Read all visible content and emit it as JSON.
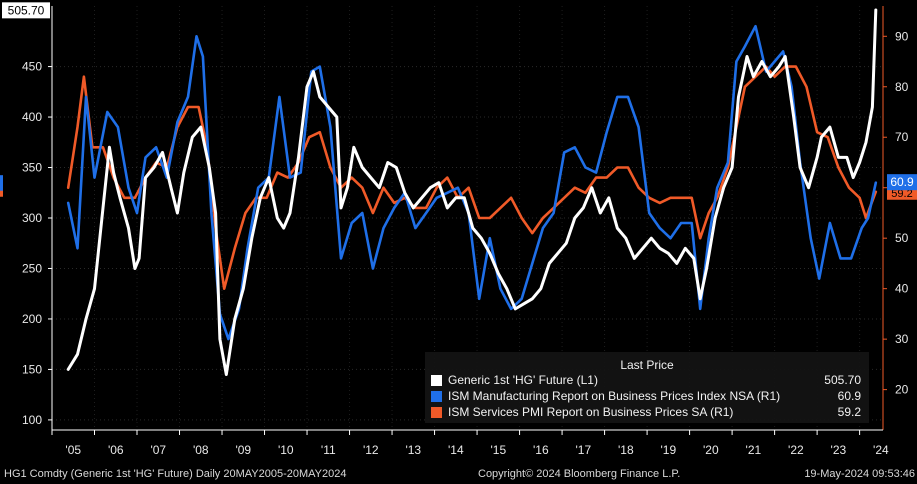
{
  "footer": {
    "ticker": "HG1 Comdty (Generic 1st 'HG' Future)  Daily 20MAY2005-20MAY2024",
    "copyright": "Copyright© 2024 Bloomberg Finance L.P.",
    "timestamp": "19-May-2024 09:53:46"
  },
  "legend": {
    "header": "Last Price",
    "items": [
      {
        "name": "Generic 1st 'HG' Future  (L1)",
        "value": "505.70",
        "color": "#ffffff"
      },
      {
        "name": "ISM Manufacturing Report on Business Prices Index NSA  (R1)",
        "value": "60.9",
        "color": "#1f6fe8"
      },
      {
        "name": "ISM Services PMI Report on Business Prices SA  (R1)",
        "value": "59.2",
        "color": "#f05a28"
      }
    ]
  },
  "chart_data": {
    "type": "line",
    "x_ticks": [
      "'05",
      "'06",
      "'07",
      "'08",
      "'09",
      "'10",
      "'11",
      "'12",
      "'13",
      "'14",
      "'15",
      "'16",
      "'17",
      "'18",
      "'19",
      "'20",
      "'21",
      "'22",
      "'23",
      "'24"
    ],
    "left_axis": {
      "ticks": [
        100,
        150,
        200,
        250,
        300,
        350,
        400,
        450
      ],
      "ylim": [
        90,
        510
      ]
    },
    "right_axis": {
      "ticks": [
        20,
        30,
        40,
        50,
        60,
        70,
        80,
        90
      ],
      "ylim": [
        12,
        96
      ]
    },
    "last_value_tags": {
      "left": "505.70",
      "right_blue": "60.9",
      "right_orange": "59.2"
    },
    "series": [
      {
        "name": "Generic 1st 'HG' Future  (L1)",
        "axis": "left",
        "color": "#ffffff",
        "x": [
          2005.38,
          2005.6,
          2005.8,
          2006.0,
          2006.2,
          2006.35,
          2006.45,
          2006.6,
          2006.8,
          2006.95,
          2007.05,
          2007.2,
          2007.4,
          2007.6,
          2007.8,
          2007.95,
          2008.1,
          2008.3,
          2008.5,
          2008.7,
          2008.85,
          2008.95,
          2009.1,
          2009.3,
          2009.5,
          2009.7,
          2009.9,
          2010.1,
          2010.3,
          2010.45,
          2010.6,
          2010.8,
          2011.0,
          2011.15,
          2011.3,
          2011.5,
          2011.7,
          2011.8,
          2011.95,
          2012.1,
          2012.3,
          2012.5,
          2012.7,
          2012.9,
          2013.1,
          2013.3,
          2013.5,
          2013.7,
          2013.9,
          2014.1,
          2014.3,
          2014.5,
          2014.7,
          2014.9,
          2015.1,
          2015.3,
          2015.5,
          2015.7,
          2015.9,
          2016.1,
          2016.3,
          2016.5,
          2016.7,
          2016.9,
          2017.1,
          2017.3,
          2017.5,
          2017.7,
          2017.9,
          2018.1,
          2018.3,
          2018.5,
          2018.7,
          2018.9,
          2019.1,
          2019.3,
          2019.5,
          2019.7,
          2019.9,
          2020.1,
          2020.25,
          2020.4,
          2020.6,
          2020.8,
          2021.0,
          2021.15,
          2021.35,
          2021.5,
          2021.7,
          2021.9,
          2022.1,
          2022.25,
          2022.45,
          2022.6,
          2022.8,
          2023.0,
          2023.1,
          2023.3,
          2023.5,
          2023.7,
          2023.85,
          2024.0,
          2024.15,
          2024.3,
          2024.38
        ],
        "values": [
          150,
          165,
          200,
          230,
          310,
          370,
          345,
          320,
          290,
          250,
          260,
          340,
          350,
          365,
          330,
          305,
          345,
          380,
          390,
          350,
          305,
          180,
          145,
          200,
          230,
          280,
          320,
          340,
          300,
          290,
          305,
          360,
          430,
          445,
          420,
          410,
          400,
          310,
          330,
          370,
          350,
          340,
          330,
          355,
          350,
          325,
          310,
          320,
          330,
          335,
          310,
          320,
          320,
          290,
          280,
          265,
          245,
          230,
          210,
          215,
          220,
          230,
          255,
          265,
          275,
          300,
          310,
          330,
          305,
          320,
          290,
          280,
          260,
          270,
          280,
          270,
          265,
          255,
          270,
          260,
          220,
          250,
          300,
          330,
          350,
          420,
          460,
          440,
          455,
          440,
          450,
          460,
          400,
          350,
          330,
          360,
          380,
          390,
          360,
          360,
          340,
          355,
          375,
          410,
          506
        ]
      },
      {
        "name": "ISM Manufacturing Report on Business Prices Index NSA  (R1)",
        "axis": "right",
        "color": "#1f6fe8",
        "x": [
          2005.38,
          2005.6,
          2005.8,
          2006.0,
          2006.3,
          2006.55,
          2006.8,
          2007.0,
          2007.2,
          2007.45,
          2007.7,
          2007.95,
          2008.2,
          2008.4,
          2008.55,
          2008.75,
          2008.95,
          2009.15,
          2009.4,
          2009.6,
          2009.85,
          2010.1,
          2010.35,
          2010.6,
          2010.85,
          2011.1,
          2011.3,
          2011.55,
          2011.8,
          2012.05,
          2012.3,
          2012.55,
          2012.8,
          2013.05,
          2013.3,
          2013.55,
          2013.8,
          2014.05,
          2014.3,
          2014.55,
          2014.8,
          2015.05,
          2015.3,
          2015.55,
          2015.8,
          2016.05,
          2016.3,
          2016.55,
          2016.8,
          2017.05,
          2017.3,
          2017.55,
          2017.8,
          2018.05,
          2018.3,
          2018.55,
          2018.8,
          2019.05,
          2019.3,
          2019.55,
          2019.8,
          2020.05,
          2020.25,
          2020.45,
          2020.65,
          2020.9,
          2021.1,
          2021.3,
          2021.55,
          2021.8,
          2022.0,
          2022.2,
          2022.4,
          2022.6,
          2022.85,
          2023.05,
          2023.3,
          2023.55,
          2023.8,
          2024.05,
          2024.2,
          2024.38
        ],
        "values": [
          57,
          48,
          78,
          62,
          75,
          72,
          60,
          55,
          66,
          68,
          62,
          73,
          78,
          90,
          86,
          55,
          35,
          30,
          36,
          48,
          60,
          62,
          78,
          62,
          63,
          83,
          84,
          72,
          46,
          53,
          55,
          44,
          52,
          56,
          59,
          52,
          55,
          58,
          59,
          60,
          55,
          38,
          50,
          40,
          36,
          38,
          45,
          52,
          55,
          67,
          68,
          64,
          63,
          71,
          78,
          78,
          72,
          55,
          52,
          50,
          53,
          53,
          36,
          50,
          60,
          65,
          85,
          88,
          92,
          83,
          85,
          87,
          80,
          65,
          50,
          42,
          53,
          46,
          46,
          52,
          54,
          61
        ]
      },
      {
        "name": "ISM Services PMI Report on Business Prices SA  (R1)",
        "axis": "right",
        "color": "#f05a28",
        "x": [
          2005.38,
          2005.6,
          2005.75,
          2005.95,
          2006.2,
          2006.45,
          2006.7,
          2006.95,
          2007.2,
          2007.45,
          2007.7,
          2007.95,
          2008.2,
          2008.45,
          2008.65,
          2008.85,
          2009.05,
          2009.3,
          2009.55,
          2009.8,
          2010.05,
          2010.3,
          2010.55,
          2010.8,
          2011.05,
          2011.3,
          2011.55,
          2011.8,
          2012.05,
          2012.3,
          2012.55,
          2012.8,
          2013.05,
          2013.3,
          2013.55,
          2013.8,
          2014.05,
          2014.3,
          2014.55,
          2014.8,
          2015.05,
          2015.3,
          2015.55,
          2015.8,
          2016.05,
          2016.3,
          2016.55,
          2016.8,
          2017.05,
          2017.3,
          2017.55,
          2017.8,
          2018.05,
          2018.3,
          2018.55,
          2018.8,
          2019.05,
          2019.3,
          2019.55,
          2019.8,
          2020.05,
          2020.25,
          2020.45,
          2020.65,
          2020.9,
          2021.1,
          2021.3,
          2021.55,
          2021.8,
          2022.0,
          2022.25,
          2022.5,
          2022.75,
          2023.0,
          2023.25,
          2023.5,
          2023.75,
          2024.0,
          2024.15,
          2024.38
        ],
        "values": [
          60,
          72,
          82,
          68,
          68,
          62,
          58,
          58,
          62,
          65,
          64,
          72,
          76,
          76,
          68,
          52,
          40,
          48,
          55,
          58,
          58,
          63,
          62,
          65,
          70,
          71,
          64,
          60,
          62,
          60,
          55,
          60,
          57,
          58,
          56,
          56,
          60,
          62,
          58,
          60,
          54,
          54,
          56,
          58,
          54,
          51,
          54,
          56,
          58,
          60,
          59,
          62,
          62,
          64,
          64,
          60,
          58,
          57,
          58,
          58,
          58,
          50,
          55,
          58,
          64,
          72,
          80,
          82,
          84,
          82,
          84,
          84,
          80,
          71,
          70,
          64,
          60,
          58,
          54,
          59.2
        ]
      }
    ]
  }
}
